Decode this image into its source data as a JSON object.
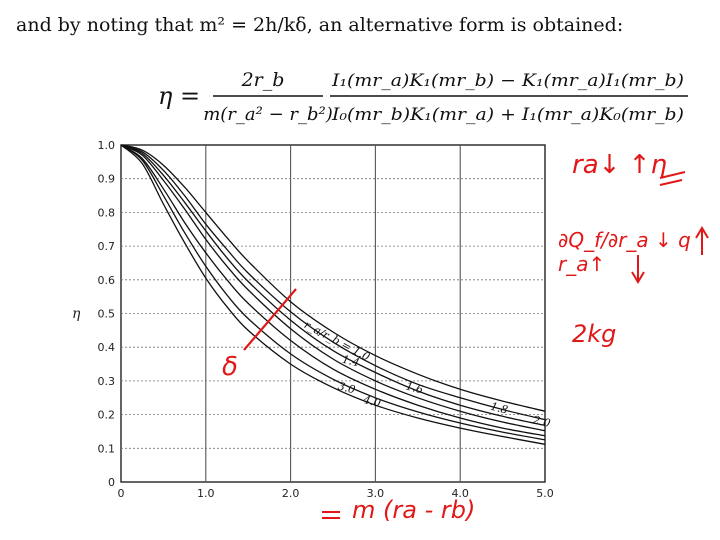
{
  "intro_text": "and by noting that m² = 2h/kδ, an alternative form is obtained:",
  "formula": {
    "lhs": "η =",
    "frac1_num": "2r_b",
    "frac1_den": "m(r_a² − r_b²)",
    "frac2_num": "I₁(mr_a)K₁(mr_b) − K₁(mr_a)I₁(mr_b)",
    "frac2_den": "I₀(mr_b)K₁(mr_a) + I₁(mr_a)K₀(mr_b)"
  },
  "chart_data": {
    "type": "line",
    "xlabel": "",
    "ylabel": "η",
    "xlim": [
      0,
      5
    ],
    "ylim": [
      0,
      1
    ],
    "x_ticks": [
      "0",
      "1.0",
      "2.0",
      "3.0",
      "4.0",
      "5.0"
    ],
    "y_ticks": [
      "0",
      "0.1",
      "0.2",
      "0.3",
      "0.4",
      "0.5",
      "0.6",
      "0.7",
      "0.8",
      "0.9",
      "1.0"
    ],
    "grid": true,
    "series": [
      {
        "name": "2.0",
        "x": [
          0,
          0.25,
          0.5,
          0.75,
          1.0,
          1.25,
          1.5,
          2.0,
          2.5,
          3.0,
          3.5,
          4.0,
          4.5,
          5.0
        ],
        "y": [
          1.0,
          0.985,
          0.94,
          0.875,
          0.8,
          0.725,
          0.655,
          0.535,
          0.445,
          0.375,
          0.32,
          0.275,
          0.24,
          0.21
        ]
      },
      {
        "name": "1.8",
        "x": [
          0,
          0.25,
          0.5,
          0.75,
          1.0,
          1.25,
          1.5,
          2.0,
          2.5,
          3.0,
          3.5,
          4.0,
          4.5,
          5.0
        ],
        "y": [
          1.0,
          0.98,
          0.925,
          0.85,
          0.765,
          0.69,
          0.62,
          0.505,
          0.415,
          0.345,
          0.29,
          0.25,
          0.215,
          0.185
        ]
      },
      {
        "name": "1.6",
        "x": [
          0,
          0.25,
          0.5,
          0.75,
          1.0,
          1.25,
          1.5,
          2.0,
          2.5,
          3.0,
          3.5,
          4.0,
          4.5,
          5.0
        ],
        "y": [
          1.0,
          0.975,
          0.91,
          0.83,
          0.745,
          0.665,
          0.595,
          0.48,
          0.39,
          0.325,
          0.27,
          0.228,
          0.195,
          0.168
        ]
      },
      {
        "name": "1.4",
        "x": [
          0,
          0.25,
          0.5,
          0.75,
          1.0,
          1.25,
          1.5,
          2.0,
          2.5,
          3.0,
          3.5,
          4.0,
          4.5,
          5.0
        ],
        "y": [
          1.0,
          0.97,
          0.895,
          0.81,
          0.72,
          0.64,
          0.57,
          0.455,
          0.365,
          0.3,
          0.25,
          0.21,
          0.178,
          0.152
        ]
      },
      {
        "name": "1.0",
        "x": [
          0,
          0.25,
          0.5,
          0.75,
          1.0,
          1.25,
          1.5,
          2.0,
          2.5,
          3.0,
          3.5,
          4.0,
          4.5,
          5.0
        ],
        "y": [
          1.0,
          0.96,
          0.87,
          0.77,
          0.68,
          0.6,
          0.53,
          0.42,
          0.335,
          0.275,
          0.228,
          0.19,
          0.16,
          0.137
        ]
      },
      {
        "name": "3.0",
        "x": [
          0,
          0.25,
          0.5,
          0.75,
          1.0,
          1.25,
          1.5,
          2.0,
          2.5,
          3.0,
          3.5,
          4.0,
          4.5,
          5.0
        ],
        "y": [
          1.0,
          0.955,
          0.85,
          0.74,
          0.64,
          0.555,
          0.485,
          0.38,
          0.305,
          0.25,
          0.208,
          0.175,
          0.148,
          0.125
        ]
      },
      {
        "name": "4.0",
        "x": [
          0,
          0.25,
          0.5,
          0.75,
          1.0,
          1.25,
          1.5,
          2.0,
          2.5,
          3.0,
          3.5,
          4.0,
          4.5,
          5.0
        ],
        "y": [
          1.0,
          0.945,
          0.825,
          0.71,
          0.605,
          0.52,
          0.45,
          0.35,
          0.28,
          0.228,
          0.19,
          0.16,
          0.135,
          0.112
        ]
      }
    ],
    "curve_labels": [
      {
        "text": "r_a/r_b = 1.0",
        "x": 2.15,
        "y": 0.46
      },
      {
        "text": "1.4",
        "x": 2.6,
        "y": 0.355
      },
      {
        "text": "1.6",
        "x": 3.35,
        "y": 0.275
      },
      {
        "text": "3.0",
        "x": 2.55,
        "y": 0.275
      },
      {
        "text": "4.0",
        "x": 2.85,
        "y": 0.235
      },
      {
        "text": "1.8",
        "x": 4.35,
        "y": 0.215
      },
      {
        "text": "2.0",
        "x": 4.85,
        "y": 0.175
      }
    ]
  },
  "annotations": {
    "ra_note": "ra↓ ↑η",
    "dq_note": "∂Q_f/∂r_a ↓ q r_a↑",
    "note_2kg": "2kg",
    "delta_note": "δ",
    "xaxis_note": "m (ra - rb)"
  },
  "colors": {
    "ink": "#e01818",
    "curve": "#111111",
    "grid": "#555555"
  }
}
